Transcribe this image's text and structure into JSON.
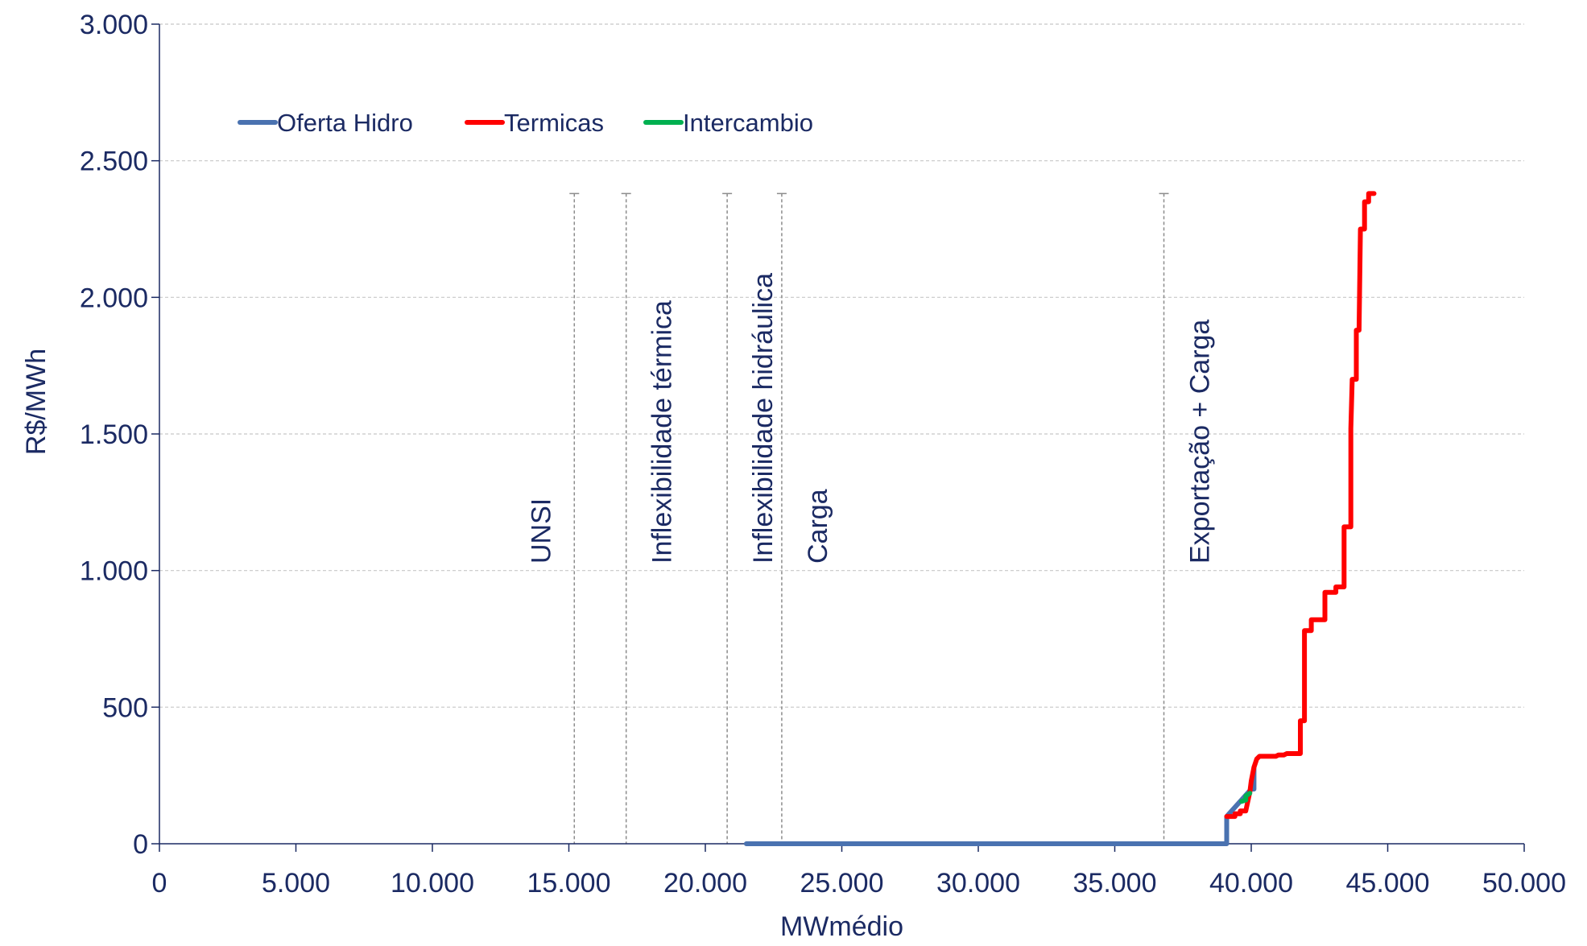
{
  "chart_data": {
    "type": "line",
    "title": "",
    "xlabel": "MWmédio",
    "ylabel": "R$/MWh",
    "xlim": [
      0,
      50000
    ],
    "ylim": [
      0,
      3000
    ],
    "xticks": [
      0,
      5000,
      10000,
      15000,
      20000,
      25000,
      30000,
      35000,
      40000,
      45000,
      50000
    ],
    "xtick_labels": [
      "0",
      "5.000",
      "10.000",
      "15.000",
      "20.000",
      "25.000",
      "30.000",
      "35.000",
      "40.000",
      "45.000",
      "50.000"
    ],
    "yticks": [
      0,
      500,
      1000,
      1500,
      2000,
      2500,
      3000
    ],
    "ytick_labels": [
      "0",
      "500",
      "1.000",
      "1.500",
      "2.000",
      "2.500",
      "3.000"
    ],
    "grid": "horizontal dashed",
    "legend_position": "top-left",
    "colors": {
      "text": "#1b2a63",
      "axis": "#1b2a63",
      "grid": "#c8c8c8",
      "ref_line": "#8c8c8c"
    },
    "series": [
      {
        "name": "Oferta Hidro",
        "color": "#4a72b0",
        "points": [
          [
            21500,
            0
          ],
          [
            39100,
            0
          ],
          [
            39100,
            100
          ],
          [
            40000,
            200
          ],
          [
            40100,
            200
          ],
          [
            40100,
            280
          ]
        ]
      },
      {
        "name": "Termicas",
        "color": "#ff0000",
        "points": [
          [
            39100,
            100
          ],
          [
            39400,
            100
          ],
          [
            39400,
            110
          ],
          [
            39600,
            110
          ],
          [
            39600,
            120
          ],
          [
            39800,
            120
          ],
          [
            39950,
            190
          ],
          [
            40000,
            230
          ],
          [
            40100,
            280
          ],
          [
            40200,
            310
          ],
          [
            40300,
            320
          ],
          [
            40900,
            320
          ],
          [
            41000,
            325
          ],
          [
            41200,
            325
          ],
          [
            41300,
            330
          ],
          [
            41800,
            330
          ],
          [
            41800,
            450
          ],
          [
            41950,
            450
          ],
          [
            41950,
            780
          ],
          [
            42200,
            780
          ],
          [
            42200,
            820
          ],
          [
            42700,
            820
          ],
          [
            42700,
            920
          ],
          [
            43100,
            920
          ],
          [
            43100,
            940
          ],
          [
            43400,
            940
          ],
          [
            43400,
            1160
          ],
          [
            43650,
            1160
          ],
          [
            43650,
            1520
          ],
          [
            43700,
            1700
          ],
          [
            43850,
            1700
          ],
          [
            43850,
            1880
          ],
          [
            43950,
            1880
          ],
          [
            44000,
            2250
          ],
          [
            44150,
            2250
          ],
          [
            44150,
            2350
          ],
          [
            44300,
            2350
          ],
          [
            44300,
            2380
          ],
          [
            44500,
            2380
          ]
        ]
      },
      {
        "name": "Intercambio",
        "color": "#00b050",
        "points": [
          [
            39650,
            155
          ],
          [
            39800,
            160
          ],
          [
            39800,
            175
          ],
          [
            39950,
            185
          ]
        ]
      }
    ],
    "reference_lines": [
      {
        "label": "UNSI",
        "x": 15200,
        "ymax": 2380,
        "label_side": "left"
      },
      {
        "label": "Inflexibilidade térmica",
        "x": 17100,
        "ymax": 2380,
        "label_side": "right"
      },
      {
        "label": "Inflexibilidade hidráulica",
        "x": 20800,
        "ymax": 2380,
        "label_side": "right"
      },
      {
        "label": "Carga",
        "x": 22800,
        "ymax": 2380,
        "label_side": "right"
      },
      {
        "label": "Exportação + Carga",
        "x": 36800,
        "ymax": 2380,
        "label_side": "right"
      }
    ]
  }
}
